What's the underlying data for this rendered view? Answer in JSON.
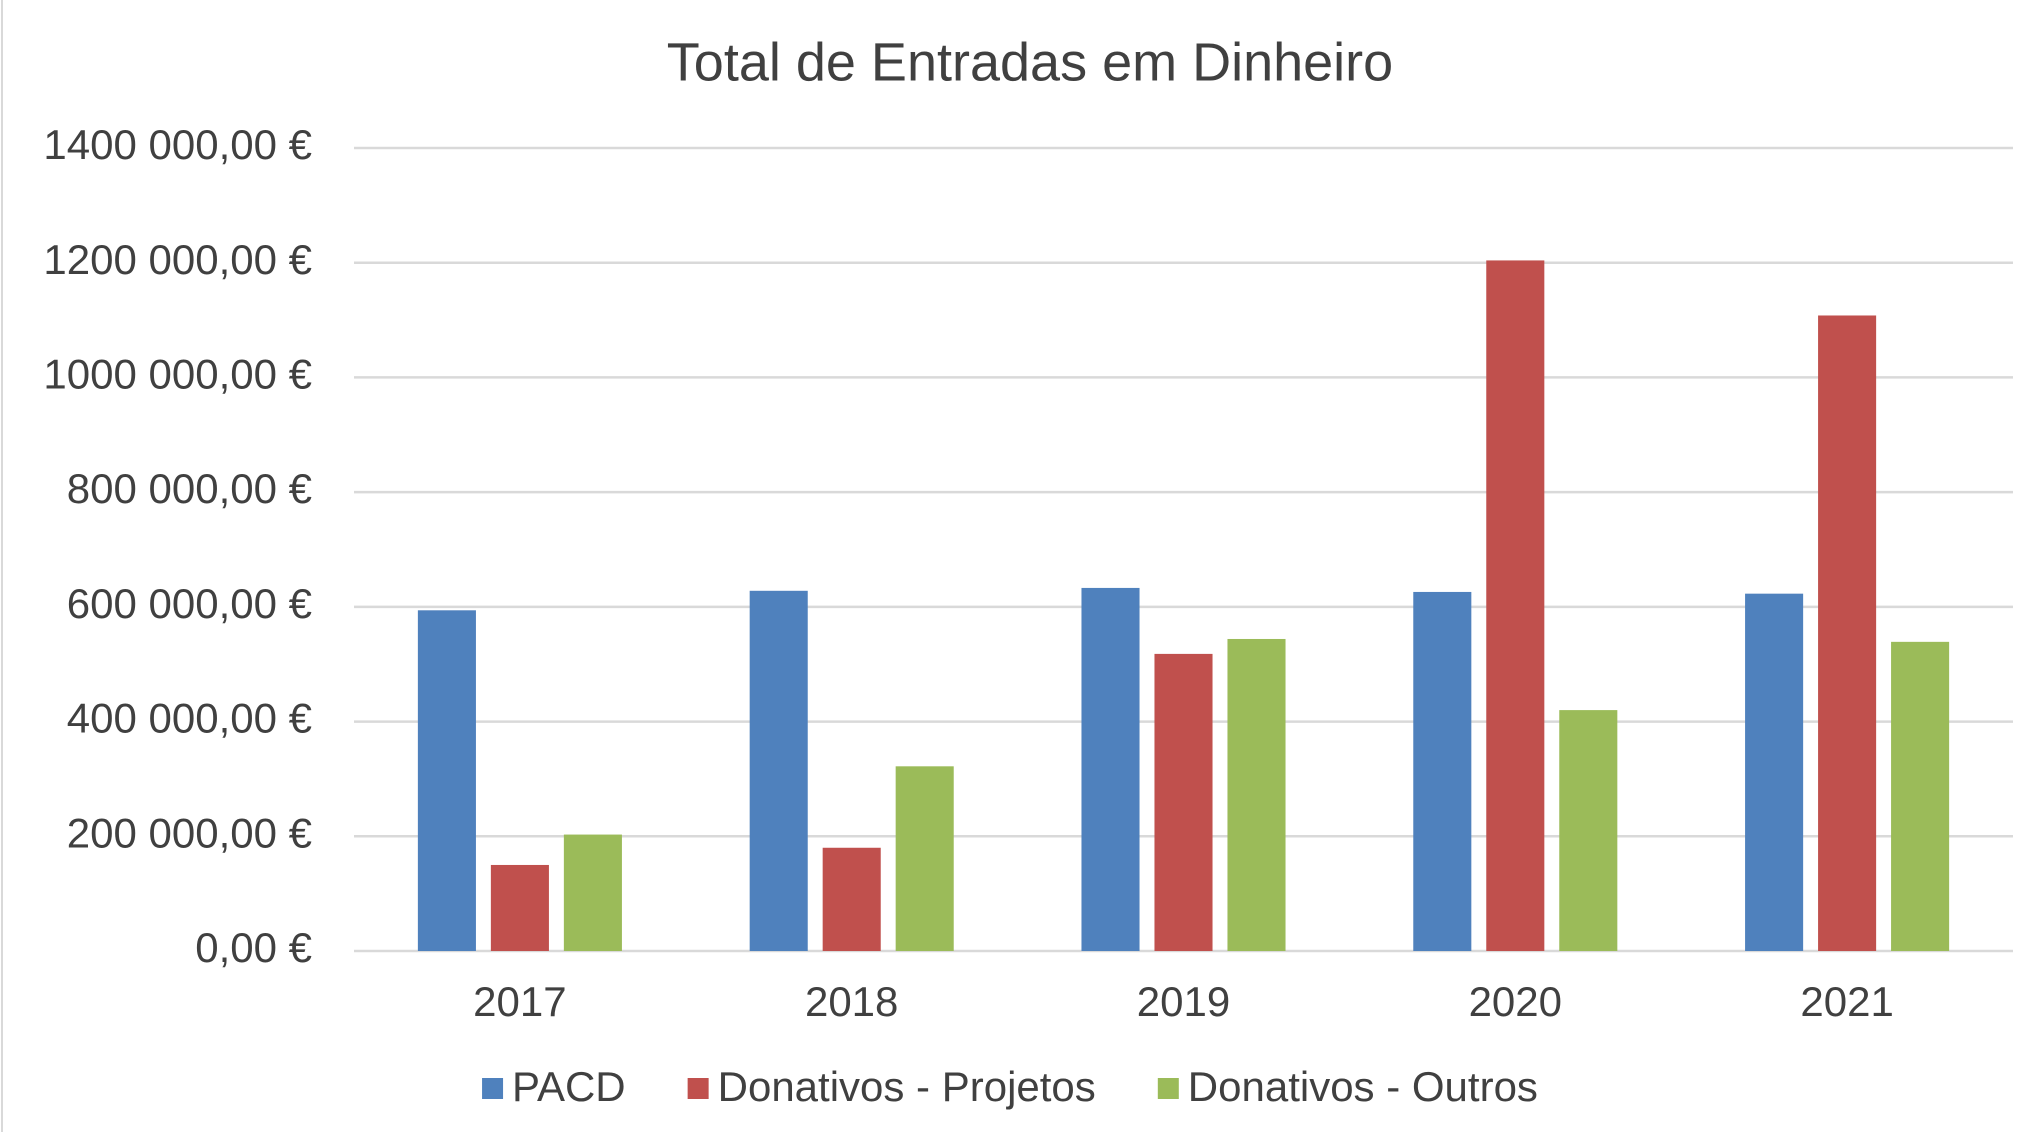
{
  "chart_data": {
    "type": "bar",
    "title": "Total de Entradas em Dinheiro",
    "categories": [
      "2017",
      "2018",
      "2019",
      "2020",
      "2021"
    ],
    "series": [
      {
        "name": "PACD",
        "color": "#4f81bd",
        "values": [
          594000,
          628000,
          633000,
          626000,
          623000
        ]
      },
      {
        "name": "Donativos - Projetos",
        "color": "#c0504d",
        "values": [
          150000,
          180000,
          518000,
          1204000,
          1108000
        ]
      },
      {
        "name": "Donativos - Outros",
        "color": "#9bbb59",
        "values": [
          203000,
          322000,
          544000,
          420000,
          539000
        ]
      }
    ],
    "ylim": [
      0,
      1400000
    ],
    "yticks": [
      {
        "value": 0,
        "label": "0,00 €"
      },
      {
        "value": 200000,
        "label": "200 000,00 €"
      },
      {
        "value": 400000,
        "label": "400 000,00 €"
      },
      {
        "value": 600000,
        "label": "600 000,00 €"
      },
      {
        "value": 800000,
        "label": "800 000,00 €"
      },
      {
        "value": 1000000,
        "label": "1000 000,00 €"
      },
      {
        "value": 1200000,
        "label": "1200 000,00 €"
      },
      {
        "value": 1400000,
        "label": "1400 000,00 €"
      }
    ],
    "grid": true,
    "legend": "bottom"
  }
}
